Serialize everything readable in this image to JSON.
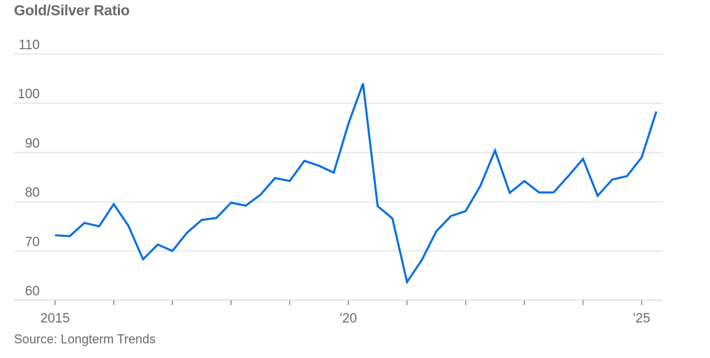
{
  "chart_data": {
    "type": "line",
    "title": "Gold/Silver Ratio",
    "source": "Source: Longterm Trends",
    "xlabel": "",
    "ylabel": "",
    "xlim": [
      2015,
      2025.35
    ],
    "ylim": [
      60,
      110
    ],
    "yticks": [
      60,
      70,
      80,
      90,
      100,
      110
    ],
    "ytick_labels": [
      "60",
      "70",
      "80",
      "90",
      "100",
      "110"
    ],
    "xticks": [
      2015,
      2016,
      2017,
      2018,
      2019,
      2020,
      2021,
      2022,
      2023,
      2024,
      2025
    ],
    "xtick_labels": [
      {
        "value": 2015,
        "label": "2015"
      },
      {
        "value": 2020,
        "label": "'20"
      },
      {
        "value": 2025,
        "label": "'25"
      }
    ],
    "grid": true,
    "line_color": "#0a6fe2",
    "series": [
      {
        "x": [
          2015.0,
          2015.25,
          2015.5,
          2015.75,
          2016.0,
          2016.25,
          2016.5,
          2016.75,
          2017.0,
          2017.25,
          2017.5,
          2017.75,
          2018.0,
          2018.25,
          2018.5,
          2018.75,
          2019.0,
          2019.25,
          2019.5,
          2019.75,
          2020.0,
          2020.25,
          2020.5,
          2020.75,
          2021.0,
          2021.25,
          2021.5,
          2021.75,
          2022.0,
          2022.25,
          2022.5,
          2022.75,
          2023.0,
          2023.25,
          2023.5,
          2023.75,
          2024.0,
          2024.25,
          2024.5,
          2024.75,
          2025.0,
          2025.25
        ],
        "values": [
          73.2,
          73.0,
          75.7,
          75.0,
          79.5,
          75.1,
          68.3,
          71.3,
          70.0,
          73.7,
          76.3,
          76.7,
          79.8,
          79.2,
          81.4,
          84.8,
          84.2,
          88.3,
          87.3,
          85.9,
          95.8,
          104.0,
          79.1,
          76.6,
          63.7,
          68.1,
          74.0,
          77.1,
          78.1,
          83.2,
          90.4,
          81.8,
          84.2,
          81.9,
          81.9,
          85.2,
          88.7,
          81.2,
          84.5,
          85.2,
          89.0,
          98.3
        ]
      }
    ]
  }
}
